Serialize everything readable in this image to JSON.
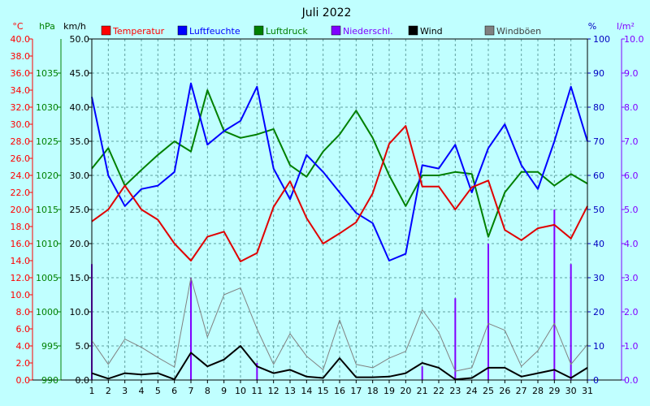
{
  "chart_data": {
    "type": "line",
    "title": "Juli 2022",
    "x": [
      1,
      2,
      3,
      4,
      5,
      6,
      7,
      8,
      9,
      10,
      11,
      12,
      13,
      14,
      15,
      16,
      17,
      18,
      19,
      20,
      21,
      22,
      23,
      24,
      25,
      26,
      27,
      28,
      29,
      30,
      31
    ],
    "x_ticks": [
      "1",
      "2",
      "3",
      "4",
      "5",
      "6",
      "7",
      "8",
      "9",
      "10",
      "11",
      "12",
      "13",
      "14",
      "15",
      "16",
      "17",
      "18",
      "19",
      "20",
      "21",
      "22",
      "23",
      "24",
      "25",
      "26",
      "27",
      "28",
      "29",
      "30",
      "31"
    ],
    "grid": true,
    "legend_position": "top",
    "axes": {
      "temp": {
        "unit": "°C",
        "min": 0,
        "max": 40,
        "color": "#ff0000",
        "ticks": [
          "0.0",
          "2.0",
          "4.0",
          "6.0",
          "8.0",
          "10.0",
          "12.0",
          "14.0",
          "16.0",
          "18.0",
          "20.0",
          "22.0",
          "24.0",
          "26.0",
          "28.0",
          "30.0",
          "32.0",
          "34.0",
          "36.0",
          "38.0",
          "40.0"
        ]
      },
      "pressure": {
        "unit": "hPa",
        "min": 990,
        "max": 1040,
        "color": "#008000",
        "ticks": [
          "990",
          "995",
          "1000",
          "1005",
          "1010",
          "1015",
          "1020",
          "1025",
          "1030",
          "1035"
        ]
      },
      "wind": {
        "unit": "km/h",
        "min": 0,
        "max": 50,
        "color": "#000000",
        "ticks": [
          "0.0",
          "5.0",
          "10.0",
          "15.0",
          "20.0",
          "25.0",
          "30.0",
          "35.0",
          "40.0",
          "45.0",
          "50.0"
        ]
      },
      "humidity": {
        "unit": "%",
        "min": 0,
        "max": 100,
        "color": "#0000c0",
        "ticks": [
          "0",
          "10",
          "20",
          "30",
          "40",
          "50",
          "60",
          "70",
          "80",
          "90",
          "100"
        ]
      },
      "rain": {
        "unit": "l/m²",
        "min": 0,
        "max": 10,
        "color": "#8000ff",
        "ticks": [
          "0.0",
          "1.0",
          "2.0",
          "3.0",
          "4.0",
          "5.0",
          "6.0",
          "7.0",
          "8.0",
          "9.0",
          "10.0"
        ]
      }
    },
    "series": [
      {
        "key": "temperatur",
        "name": "Temperatur",
        "axis": "temp",
        "color": "#e00000",
        "kind": "line",
        "width": 2,
        "values": [
          18.6,
          20.0,
          22.8,
          20.0,
          18.8,
          16.0,
          14.0,
          16.8,
          17.4,
          13.9,
          14.9,
          20.3,
          23.3,
          19.0,
          16.0,
          17.2,
          18.5,
          21.9,
          27.7,
          29.8,
          22.7,
          22.7,
          20.0,
          22.6,
          23.4,
          17.6,
          16.4,
          17.8,
          18.2,
          16.6,
          20.4
        ]
      },
      {
        "key": "luftfeuchte",
        "name": "Luftfeuchte",
        "axis": "humidity",
        "color": "#0000ff",
        "kind": "line",
        "width": 2,
        "values": [
          83,
          60,
          51,
          56,
          57,
          61,
          87,
          69,
          73,
          76,
          86,
          62,
          53,
          66,
          61,
          55,
          49,
          46,
          35,
          37,
          63,
          62,
          69,
          55,
          68,
          75,
          63,
          56,
          70,
          86,
          70
        ]
      },
      {
        "key": "luftdruck",
        "name": "Luftdruck",
        "axis": "pressure",
        "color": "#008000",
        "kind": "line",
        "width": 2,
        "values": [
          1021,
          1024,
          1018.5,
          1020.8,
          1023,
          1025,
          1023.5,
          1032.5,
          1026.5,
          1025.5,
          1026,
          1026.8,
          1021.5,
          1019.8,
          1023.5,
          1026,
          1029.5,
          1025.5,
          1020,
          1015.5,
          1020,
          1020,
          1020.5,
          1020.2,
          1011,
          1017.5,
          1020.5,
          1020.5,
          1018.5,
          1020.2,
          1018.8
        ]
      },
      {
        "key": "niederschl",
        "name": "Niederschl.",
        "axis": "rain",
        "color": "#8000ff",
        "kind": "bar",
        "width": 2,
        "values": [
          3.4,
          0,
          0,
          0,
          0,
          0,
          3.0,
          0,
          0,
          0,
          0.5,
          0,
          0,
          0,
          0,
          0,
          0,
          0,
          0,
          0,
          0.4,
          0,
          2.4,
          0,
          4.0,
          0,
          0,
          0,
          5.0,
          3.4,
          0
        ]
      },
      {
        "key": "wind",
        "name": "Wind",
        "axis": "wind",
        "color": "#000000",
        "kind": "line",
        "width": 2,
        "values": [
          1.0,
          0.2,
          1.0,
          0.8,
          1.0,
          0.1,
          4.0,
          2.0,
          3.0,
          5.0,
          2.0,
          1.0,
          1.5,
          0.5,
          0.3,
          3.2,
          0.4,
          0.4,
          0.5,
          1.0,
          2.5,
          1.8,
          0.1,
          0.3,
          1.8,
          1.8,
          0.5,
          1.0,
          1.5,
          0.3,
          1.8
        ]
      },
      {
        "key": "windboeen",
        "name": "Windböen",
        "axis": "wind",
        "color": "#808080",
        "kind": "line",
        "width": 1,
        "values": [
          5.8,
          2.3,
          6.0,
          4.8,
          3.3,
          1.9,
          15.0,
          6.3,
          12.5,
          13.5,
          7.5,
          2.3,
          6.8,
          3.5,
          1.5,
          8.8,
          2.3,
          1.8,
          3.2,
          4.2,
          10.3,
          7.0,
          1.3,
          1.8,
          8.3,
          7.3,
          2.0,
          4.3,
          8.3,
          2.3,
          5.2
        ]
      }
    ]
  }
}
